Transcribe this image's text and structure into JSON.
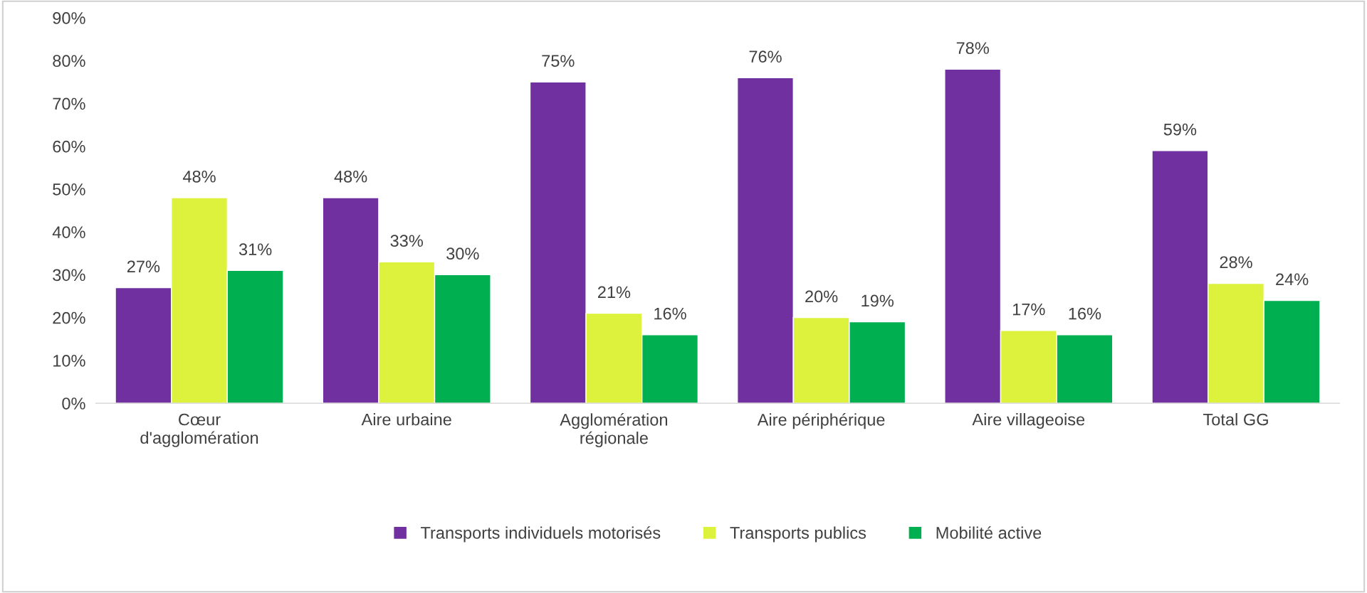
{
  "chart_data": {
    "type": "bar",
    "categories": [
      "Cœur\nd'agglomération",
      "Aire urbaine",
      "Agglomération\nrégionale",
      "Aire périphérique",
      "Aire villageoise",
      "Total GG"
    ],
    "series": [
      {
        "name": "Transports individuels motorisés",
        "color": "#7030a0",
        "values": [
          27,
          48,
          75,
          76,
          78,
          59
        ],
        "value_labels": [
          "27%",
          "48%",
          "75%",
          "76%",
          "78%",
          "59%"
        ]
      },
      {
        "name": "Transports publics",
        "color": "#dcf23c",
        "values": [
          48,
          33,
          21,
          20,
          17,
          28
        ],
        "value_labels": [
          "48%",
          "33%",
          "21%",
          "20%",
          "17%",
          "28%"
        ]
      },
      {
        "name": "Mobilité active",
        "color": "#00b050",
        "values": [
          31,
          30,
          16,
          19,
          16,
          24
        ],
        "value_labels": [
          "31%",
          "30%",
          "16%",
          "19%",
          "16%",
          "24%"
        ]
      }
    ],
    "ylim": [
      0,
      90
    ],
    "yticks": [
      {
        "value": 0,
        "label": "0%"
      },
      {
        "value": 10,
        "label": "10%"
      },
      {
        "value": 20,
        "label": "20%"
      },
      {
        "value": 30,
        "label": "30%"
      },
      {
        "value": 40,
        "label": "40%"
      },
      {
        "value": 50,
        "label": "50%"
      },
      {
        "value": 60,
        "label": "60%"
      },
      {
        "value": 70,
        "label": "70%"
      },
      {
        "value": 80,
        "label": "80%"
      },
      {
        "value": 90,
        "label": "90%"
      }
    ],
    "grid": false,
    "legend": "bottom"
  }
}
